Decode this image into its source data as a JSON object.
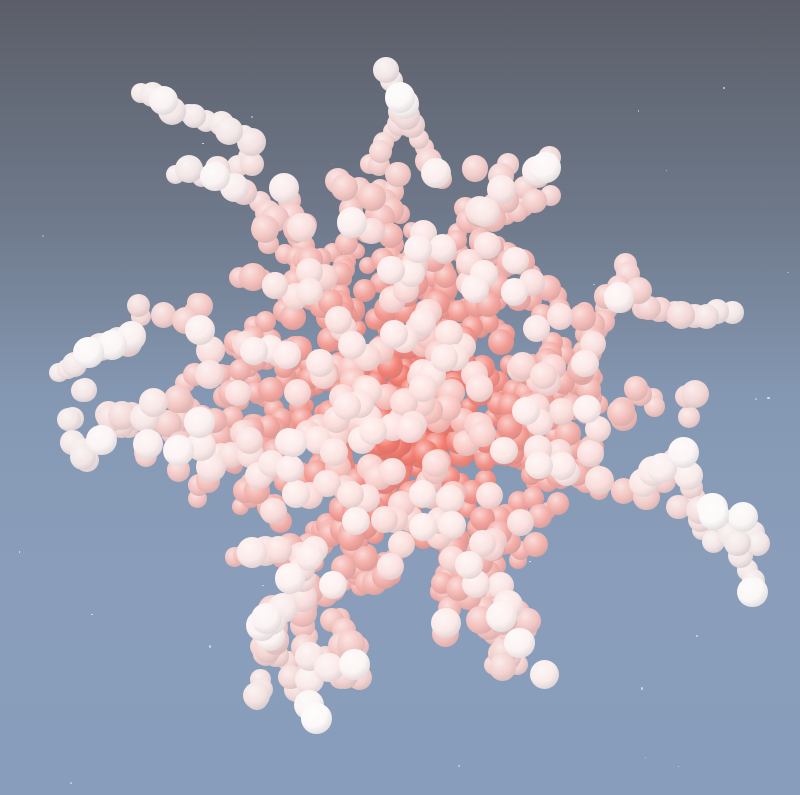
{
  "scene": {
    "subject": "sphere-cluster",
    "colors": {
      "sky_top": "#5b5e68",
      "sky_mid": "#8598b3",
      "sky_bottom": "#889dbb",
      "core": "#f26a5c",
      "mid": "#f3a9a3",
      "outer": "#f3e7e7",
      "highlight": "#ffffff"
    }
  }
}
